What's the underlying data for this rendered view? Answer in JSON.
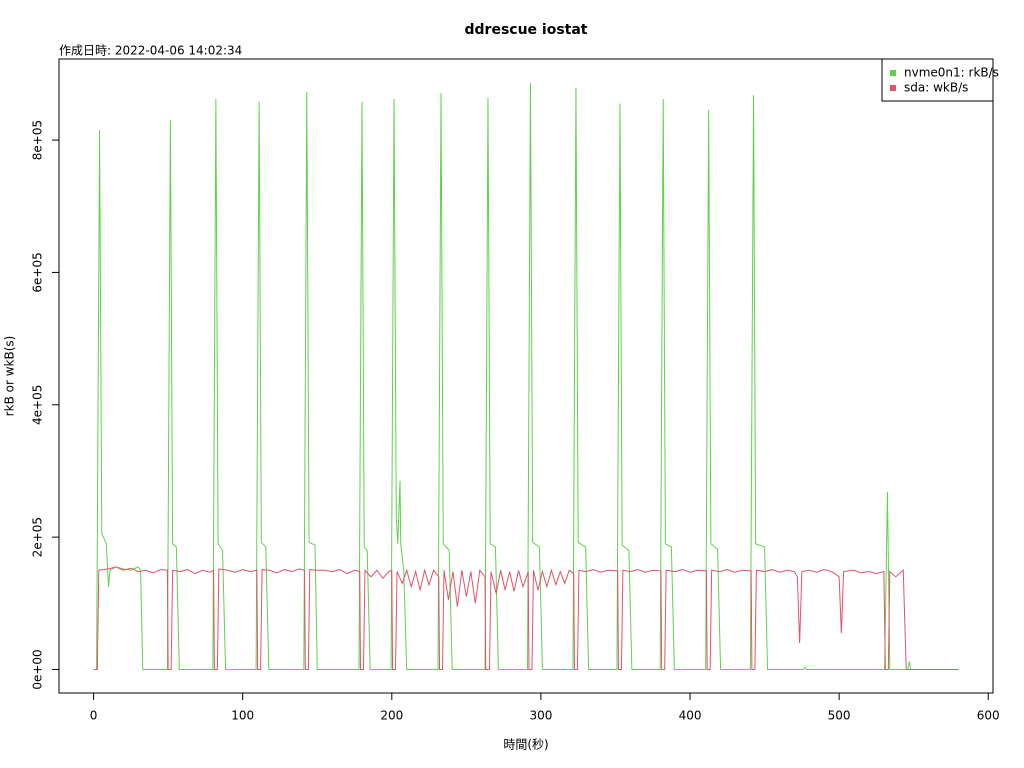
{
  "chart_data": {
    "type": "line",
    "title": "ddrescue iostat",
    "subtitle": "作成日時: 2022-04-06 14:02:34",
    "x_label": "時間(秒)",
    "y_label": "rkB or wkB(s)",
    "xlim": [
      -23.2,
      603.2
    ],
    "ylim": [
      -35500,
      922500
    ],
    "xticks": [
      0,
      100,
      200,
      300,
      400,
      500,
      600
    ],
    "yticks": [
      {
        "value": 0,
        "label": "0e+00"
      },
      {
        "value": 200000,
        "label": "2e+05"
      },
      {
        "value": 400000,
        "label": "4e+05"
      },
      {
        "value": 600000,
        "label": "6e+05"
      },
      {
        "value": 800000,
        "label": "8e+05"
      }
    ],
    "grid": false,
    "legend": "topright",
    "series": [
      {
        "name": "nvme0n1: rkB/s",
        "color": "#61d04f",
        "x": [
          0,
          2,
          4,
          5.5,
          7,
          8.5,
          10,
          11,
          15,
          20,
          25,
          30,
          31.5,
          33,
          49.5,
          51.5,
          53,
          55.5,
          57.5,
          80,
          82,
          83.5,
          86.5,
          88.5,
          109,
          111,
          112.5,
          115.5,
          117.5,
          141,
          143,
          144.5,
          148.5,
          150,
          178,
          180,
          181.5,
          183.5,
          185.5,
          199.5,
          201.5,
          203,
          204,
          205.5,
          206,
          208,
          210,
          231,
          233,
          234.5,
          238.5,
          240.5,
          262.5,
          264.5,
          266,
          269.5,
          271.5,
          291,
          293,
          294.5,
          299,
          301,
          321.5,
          323.5,
          325,
          330,
          332,
          351,
          353,
          354.5,
          359,
          361,
          380,
          382,
          383.5,
          387.5,
          389.5,
          410.5,
          412.5,
          414,
          418.5,
          420.5,
          440.5,
          442.6,
          444,
          450,
          452,
          476,
          477,
          478,
          530.5,
          532.4,
          534,
          546,
          547,
          548,
          580
        ],
        "values": [
          0,
          0,
          815000,
          205000,
          198000,
          190000,
          125000,
          150000,
          155000,
          152000,
          150000,
          155000,
          150000,
          0,
          0,
          830000,
          190000,
          185000,
          0,
          0,
          862000,
          190000,
          180000,
          0,
          0,
          858000,
          192000,
          185000,
          0,
          0,
          873000,
          192000,
          188000,
          0,
          0,
          858000,
          185000,
          180000,
          0,
          0,
          862000,
          230000,
          190000,
          285000,
          190000,
          150000,
          0,
          0,
          871000,
          190000,
          180000,
          0,
          0,
          864000,
          190000,
          185000,
          0,
          0,
          886000,
          192000,
          185000,
          0,
          0,
          879000,
          192000,
          185000,
          0,
          0,
          855000,
          188000,
          180000,
          0,
          0,
          862000,
          190000,
          185000,
          0,
          0,
          845000,
          190000,
          182000,
          0,
          0,
          868000,
          190000,
          185000,
          0,
          0,
          3000,
          0,
          0,
          268000,
          0,
          0,
          12000,
          0,
          0
        ]
      },
      {
        "name": "sda: wkB/s",
        "color": "#df536b",
        "x": [
          0,
          2.5,
          3.5,
          10,
          15,
          20,
          25,
          30,
          35,
          40,
          45,
          49.5,
          50,
          52,
          53,
          58,
          63,
          68,
          73,
          78,
          80.5,
          81,
          83,
          84,
          90,
          95,
          100,
          105,
          109.5,
          110,
          112,
          113,
          118,
          123,
          128,
          133,
          138,
          141.5,
          142,
          144,
          145,
          150,
          155,
          160,
          165,
          170,
          175,
          178.5,
          179,
          181,
          182,
          186,
          190,
          194,
          198,
          200,
          200.5,
          202.5,
          203.5,
          207,
          210,
          213,
          216,
          219,
          222,
          225,
          228,
          231.5,
          232,
          234,
          235,
          238,
          241,
          244,
          247,
          250,
          253,
          256,
          259,
          262.5,
          263,
          265.5,
          266.5,
          270,
          273,
          276,
          279,
          282,
          285,
          288,
          291.5,
          292,
          294,
          295,
          298,
          301,
          304,
          307,
          310,
          313,
          316,
          319,
          322,
          322.5,
          324.5,
          325.5,
          330,
          335,
          340,
          345,
          351.5,
          352,
          354,
          355,
          360,
          365,
          370,
          375,
          380.5,
          381,
          383,
          384,
          390,
          395,
          400,
          405,
          411,
          411.5,
          413.5,
          414.5,
          420,
          425,
          430,
          435,
          441,
          441.5,
          443.5,
          444.5,
          450,
          455,
          460,
          465,
          470,
          472,
          473.5,
          475,
          480,
          485,
          490,
          495,
          500,
          501.5,
          503,
          510,
          515,
          520,
          525,
          530,
          531,
          533,
          534,
          538,
          542,
          543,
          545,
          580
        ],
        "values": [
          0,
          0,
          150000,
          152000,
          155000,
          150000,
          153000,
          148000,
          150000,
          146000,
          151000,
          150000,
          0,
          0,
          150000,
          148000,
          151000,
          145000,
          150000,
          147000,
          150000,
          0,
          0,
          152000,
          150000,
          147000,
          151000,
          148000,
          150000,
          0,
          0,
          151000,
          150000,
          146000,
          151000,
          148000,
          152000,
          150000,
          0,
          0,
          151000,
          150000,
          150000,
          148000,
          151000,
          145000,
          150000,
          148000,
          0,
          0,
          150000,
          140000,
          150000,
          138000,
          148000,
          150000,
          0,
          0,
          148000,
          130000,
          150000,
          125000,
          148000,
          120000,
          150000,
          128000,
          150000,
          140000,
          0,
          0,
          150000,
          105000,
          148000,
          95000,
          150000,
          110000,
          148000,
          100000,
          150000,
          140000,
          0,
          0,
          148000,
          115000,
          150000,
          120000,
          148000,
          118000,
          150000,
          125000,
          148000,
          0,
          0,
          150000,
          120000,
          148000,
          125000,
          150000,
          128000,
          148000,
          130000,
          150000,
          145000,
          0,
          0,
          150000,
          148000,
          151000,
          147000,
          150000,
          149000,
          0,
          0,
          150000,
          148000,
          151000,
          147000,
          150000,
          149000,
          0,
          0,
          150000,
          148000,
          151000,
          147000,
          150000,
          149000,
          0,
          0,
          150000,
          148000,
          151000,
          147000,
          150000,
          149000,
          0,
          0,
          150000,
          148000,
          151000,
          147000,
          150000,
          148000,
          140000,
          40000,
          148000,
          150000,
          147000,
          151000,
          148000,
          140000,
          55000,
          148000,
          150000,
          146000,
          148000,
          145000,
          148000,
          0,
          0,
          148000,
          140000,
          148000,
          150000,
          0,
          0
        ]
      }
    ]
  }
}
